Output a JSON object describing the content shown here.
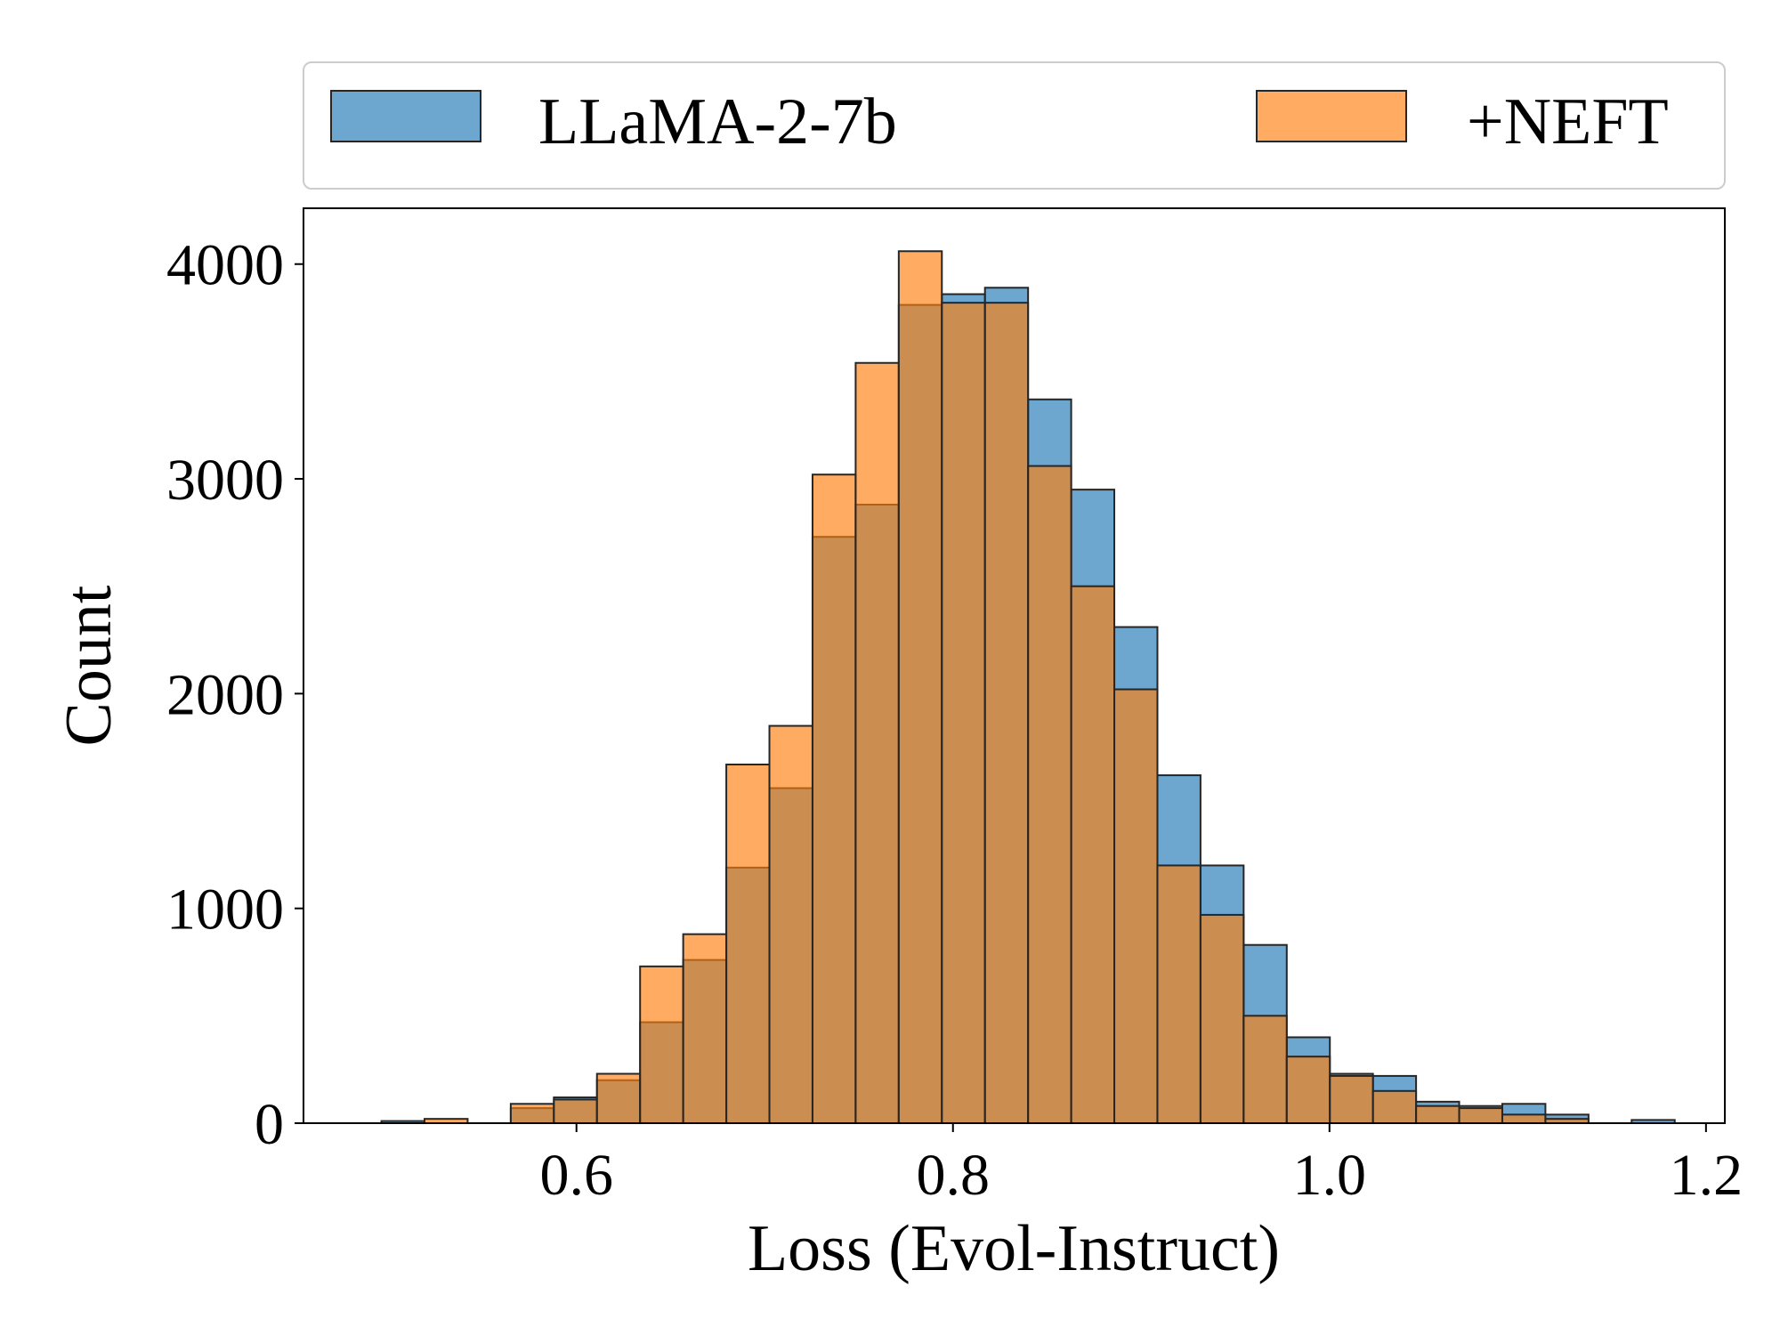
{
  "chart_data": {
    "type": "bar",
    "title": "",
    "xlabel": "Loss (Evol-Instruct)",
    "ylabel": "Count",
    "xlim": [
      0.455,
      1.21
    ],
    "ylim": [
      0,
      4260
    ],
    "x_ticks": [
      0.6,
      0.8,
      1.0,
      1.2
    ],
    "x_tick_labels": [
      "0.6",
      "0.8",
      "1.0",
      "1.2"
    ],
    "y_ticks": [
      0,
      1000,
      2000,
      3000,
      4000
    ],
    "y_tick_labels": [
      "0",
      "1000",
      "2000",
      "3000",
      "4000"
    ],
    "grid": false,
    "legend": {
      "placement": "top, above plot",
      "columns": 2
    },
    "bin_edges": [
      0.4964,
      0.5193,
      0.5422,
      0.5651,
      0.588,
      0.6109,
      0.6338,
      0.6567,
      0.6796,
      0.7025,
      0.7254,
      0.7483,
      0.7712,
      0.7941,
      0.817,
      0.8399,
      0.8628,
      0.8857,
      0.9086,
      0.9315,
      0.9544,
      0.9773,
      1.0002,
      1.0231,
      1.046,
      1.0689,
      1.0918,
      1.1147,
      1.1376,
      1.1605,
      1.1834
    ],
    "series": [
      {
        "name": "LLaMA-2-7b",
        "color": "#1f77b4",
        "values": [
          10,
          0,
          0,
          70,
          120,
          200,
          470,
          760,
          1190,
          1560,
          2730,
          2880,
          3810,
          3860,
          3890,
          3370,
          2950,
          2310,
          1620,
          1200,
          830,
          400,
          230,
          220,
          100,
          80,
          90,
          40,
          0,
          15
        ]
      },
      {
        "name": "+NEFT",
        "color": "#ff7f0e",
        "values": [
          0,
          20,
          0,
          90,
          110,
          230,
          730,
          880,
          1670,
          1850,
          3020,
          3540,
          4060,
          3820,
          3820,
          3060,
          2500,
          2020,
          1200,
          970,
          500,
          310,
          220,
          150,
          80,
          70,
          40,
          20,
          0,
          0
        ]
      }
    ]
  }
}
